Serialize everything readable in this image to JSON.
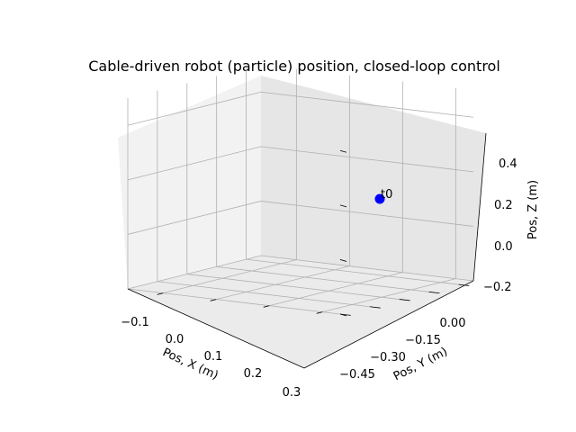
{
  "chart_data": {
    "type": "scatter3d",
    "title": "Cable-driven robot (particle) position, closed-loop control",
    "xlabel": "Pos, X (m)",
    "ylabel": "Pos, Y (m)",
    "zlabel": "Pos, Z (m)",
    "x_ticks": [
      "−0.1",
      "0.0",
      "0.1",
      "0.2",
      "0.3"
    ],
    "y_ticks": [
      "−0.45",
      "−0.30",
      "−0.15",
      "0.00"
    ],
    "z_ticks": [
      "−0.2",
      "0.0",
      "0.2",
      "0.4"
    ],
    "points": [
      {
        "x": 0.2,
        "y": -0.15,
        "z": 0.2,
        "label": "t0",
        "color": "#0000ff"
      }
    ],
    "grid": true
  }
}
